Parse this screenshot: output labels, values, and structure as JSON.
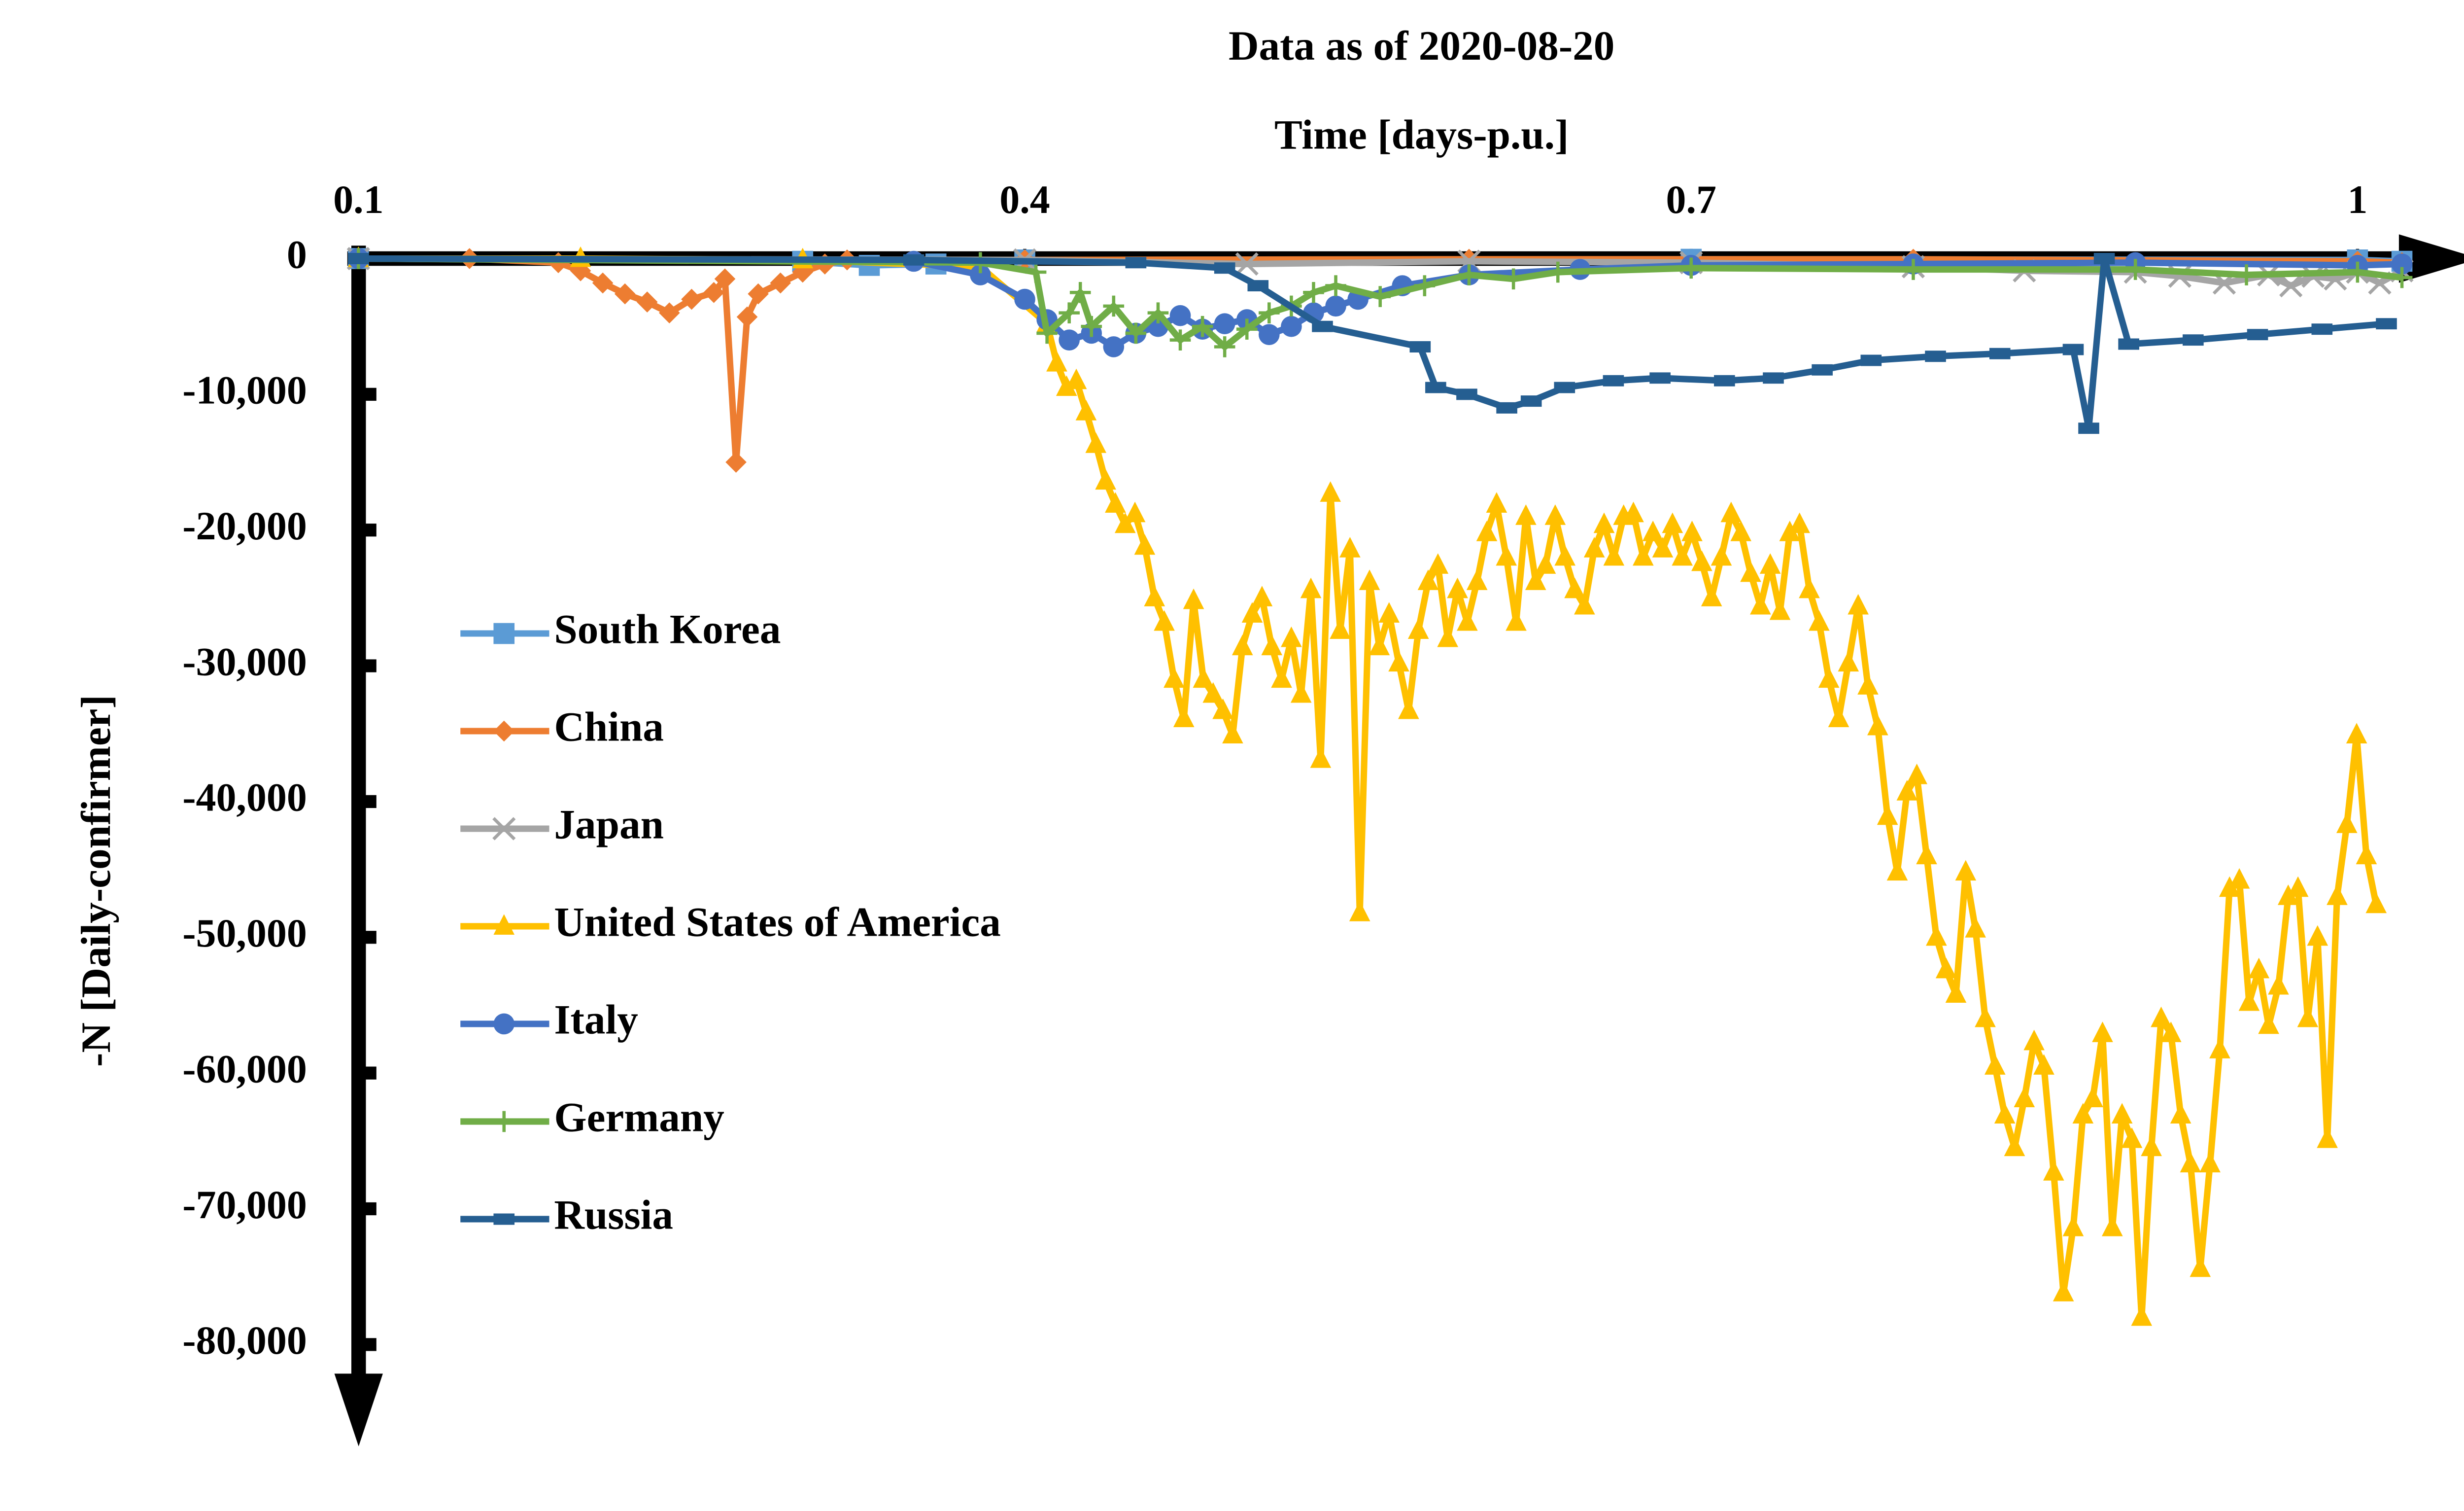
{
  "chart_data": {
    "type": "line",
    "title": "Data as of 2020-08-20",
    "x_label": "Time [days-p.u.]",
    "y_label": "-N [Daily-confirmer]",
    "xlim": [
      0.095,
      1.055
    ],
    "xticks": [
      0.1,
      0.4,
      0.7,
      1
    ],
    "ylim": [
      -87500,
      0
    ],
    "yticks": [
      0,
      {
        "value": -10000,
        "label": "-10,000"
      },
      {
        "value": -20000,
        "label": "-20,000"
      },
      {
        "value": -30000,
        "label": "-30,000"
      },
      {
        "value": -40000,
        "label": "-40,000"
      },
      {
        "value": -50000,
        "label": "-50,000"
      },
      {
        "value": -60000,
        "label": "-60,000"
      },
      {
        "value": -70000,
        "label": "-70,000"
      },
      {
        "value": -80000,
        "label": "-80,000"
      }
    ],
    "legend_position": "left",
    "series": [
      {
        "name": "South Korea",
        "color": "#5b9bd5",
        "marker": "square",
        "x": [
          0.1,
          0.3,
          0.33,
          0.36,
          0.4,
          0.7,
          1.0,
          1.02
        ],
        "values": [
          0,
          -200,
          -500,
          -400,
          -100,
          -50,
          -100,
          -200
        ]
      },
      {
        "name": "China",
        "color": "#ed7d31",
        "marker": "diamond",
        "x": [
          0.1,
          0.15,
          0.19,
          0.2,
          0.21,
          0.22,
          0.23,
          0.24,
          0.25,
          0.26,
          0.265,
          0.27,
          0.275,
          0.28,
          0.29,
          0.3,
          0.31,
          0.32,
          0.4,
          0.6,
          0.8,
          1.0,
          1.02
        ],
        "values": [
          0,
          0,
          -300,
          -900,
          -1800,
          -2600,
          -3200,
          -4000,
          -3000,
          -2500,
          -1500,
          -15000,
          -4300,
          -2600,
          -1800,
          -1000,
          -400,
          -100,
          -100,
          -50,
          -50,
          -200,
          -300
        ]
      },
      {
        "name": "Japan",
        "color": "#a5a5a5",
        "marker": "x",
        "x": [
          0.1,
          0.4,
          0.5,
          0.6,
          0.7,
          0.8,
          0.85,
          0.9,
          0.92,
          0.94,
          0.96,
          0.97,
          0.98,
          0.99,
          1.0,
          1.01,
          1.02
        ],
        "values": [
          0,
          -100,
          -400,
          -200,
          -300,
          -600,
          -900,
          -1000,
          -1300,
          -1800,
          -1200,
          -2000,
          -1300,
          -1500,
          -1000,
          -1800,
          -900
        ]
      },
      {
        "name": "United States of America",
        "color": "#ffc000",
        "marker": "triangle",
        "x": [
          0.1,
          0.2,
          0.3,
          0.38,
          0.41,
          0.4144,
          0.4188,
          0.4232,
          0.4276,
          0.432,
          0.4364,
          0.4408,
          0.4452,
          0.4496,
          0.454,
          0.4584,
          0.4628,
          0.4672,
          0.4716,
          0.476,
          0.4804,
          0.4848,
          0.4892,
          0.4936,
          0.498,
          0.5024,
          0.5068,
          0.5112,
          0.5156,
          0.52,
          0.5244,
          0.5288,
          0.5332,
          0.5376,
          0.542,
          0.5464,
          0.5508,
          0.5552,
          0.5596,
          0.564,
          0.5684,
          0.5728,
          0.5772,
          0.5816,
          0.586,
          0.5904,
          0.5948,
          0.5992,
          0.6036,
          0.608,
          0.6124,
          0.6168,
          0.6212,
          0.6256,
          0.63,
          0.6344,
          0.6388,
          0.6432,
          0.6476,
          0.652,
          0.6564,
          0.6608,
          0.6652,
          0.6696,
          0.674,
          0.6784,
          0.6828,
          0.6872,
          0.6916,
          0.696,
          0.7004,
          0.7048,
          0.7092,
          0.7136,
          0.718,
          0.7224,
          0.7268,
          0.7312,
          0.7356,
          0.74,
          0.7444,
          0.7488,
          0.7532,
          0.7576,
          0.762,
          0.7664,
          0.7708,
          0.7752,
          0.7796,
          0.784,
          0.7884,
          0.7928,
          0.7972,
          0.8016,
          0.806,
          0.8104,
          0.8148,
          0.8192,
          0.8236,
          0.828,
          0.8324,
          0.8368,
          0.8412,
          0.8456,
          0.85,
          0.8544,
          0.8588,
          0.8632,
          0.8676,
          0.872,
          0.8764,
          0.8808,
          0.8852,
          0.8896,
          0.894,
          0.8984,
          0.9028,
          0.9072,
          0.9116,
          0.916,
          0.9204,
          0.9248,
          0.9292,
          0.9336,
          0.938,
          0.9424,
          0.9468,
          0.9512,
          0.9556,
          0.96,
          0.9644,
          0.9688,
          0.9732,
          0.9776,
          0.982,
          0.9864,
          0.9908,
          0.9952,
          0.9996,
          1.004,
          1.0084
        ],
        "values": [
          0,
          0,
          -100,
          -600,
          -4800,
          -7700,
          -9500,
          -9000,
          -11300,
          -13700,
          -16400,
          -18100,
          -19600,
          -18800,
          -21200,
          -25000,
          -26800,
          -31000,
          -33900,
          -25200,
          -31000,
          -32100,
          -33300,
          -35100,
          -28600,
          -26200,
          -25000,
          -28600,
          -31000,
          -28000,
          -32100,
          -24400,
          -36900,
          -17300,
          -27400,
          -21400,
          -48200,
          -23800,
          -28600,
          -26200,
          -29800,
          -33300,
          -27400,
          -23800,
          -22600,
          -28000,
          -24400,
          -26800,
          -23800,
          -20200,
          -18100,
          -22000,
          -26800,
          -19000,
          -23800,
          -22600,
          -19000,
          -22000,
          -24400,
          -25600,
          -21400,
          -19600,
          -22000,
          -19000,
          -18800,
          -22000,
          -20200,
          -21400,
          -19600,
          -22000,
          -20200,
          -22400,
          -25000,
          -22000,
          -18800,
          -20200,
          -23200,
          -25600,
          -22600,
          -26000,
          -20200,
          -19600,
          -24400,
          -26800,
          -31000,
          -33900,
          -29800,
          -25600,
          -31500,
          -34500,
          -41100,
          -45200,
          -39300,
          -38100,
          -44000,
          -50000,
          -52400,
          -54200,
          -45200,
          -49400,
          -56000,
          -59500,
          -63100,
          -65500,
          -61900,
          -57700,
          -59500,
          -67300,
          -76200,
          -71400,
          -63100,
          -61900,
          -57100,
          -71400,
          -63100,
          -64900,
          -78000,
          -65500,
          -56000,
          -57100,
          -63100,
          -66700,
          -74400,
          -66700,
          -58300,
          -46400,
          -45800,
          -54800,
          -52400,
          -56500,
          -53600,
          -47000,
          -46400,
          -56000,
          -50000,
          -64900,
          -47000,
          -41700,
          -35100,
          -44000,
          -47600
        ]
      },
      {
        "name": "Italy",
        "color": "#4472c4",
        "marker": "circle",
        "x": [
          0.1,
          0.35,
          0.38,
          0.4,
          0.41,
          0.42,
          0.43,
          0.44,
          0.45,
          0.46,
          0.47,
          0.48,
          0.49,
          0.5,
          0.51,
          0.52,
          0.53,
          0.54,
          0.55,
          0.57,
          0.6,
          0.65,
          0.7,
          0.8,
          0.9,
          1.0,
          1.02
        ],
        "values": [
          0,
          -200,
          -1200,
          -3000,
          -4500,
          -6000,
          -5500,
          -6500,
          -5500,
          -5000,
          -4200,
          -5200,
          -4800,
          -4500,
          -5600,
          -5000,
          -4000,
          -3500,
          -3000,
          -2000,
          -1200,
          -800,
          -500,
          -400,
          -300,
          -500,
          -400
        ]
      },
      {
        "name": "Germany",
        "color": "#70ad47",
        "marker": "plus",
        "x": [
          0.1,
          0.38,
          0.405,
          0.41,
          0.42,
          0.425,
          0.43,
          0.44,
          0.45,
          0.46,
          0.47,
          0.48,
          0.49,
          0.5,
          0.51,
          0.52,
          0.53,
          0.54,
          0.56,
          0.58,
          0.6,
          0.62,
          0.64,
          0.7,
          0.8,
          0.9,
          0.95,
          1.0,
          1.02
        ],
        "values": [
          0,
          -300,
          -1000,
          -5500,
          -4000,
          -2500,
          -5000,
          -3500,
          -5500,
          -4000,
          -6000,
          -5000,
          -6500,
          -5200,
          -4000,
          -3500,
          -2500,
          -2000,
          -2800,
          -2000,
          -1200,
          -1500,
          -1000,
          -700,
          -800,
          -800,
          -1200,
          -1000,
          -1400
        ]
      },
      {
        "name": "Russia",
        "color": "#255e91",
        "marker": "dash",
        "x": [
          0.1,
          0.35,
          0.45,
          0.49,
          0.505,
          0.534,
          0.578,
          0.585,
          0.599,
          0.617,
          0.628,
          0.643,
          0.665,
          0.686,
          0.715,
          0.737,
          0.759,
          0.781,
          0.81,
          0.839,
          0.872,
          0.879,
          0.886,
          0.897,
          0.926,
          0.955,
          0.984,
          1.013
        ],
        "values": [
          0,
          -100,
          -300,
          -700,
          -2000,
          -5000,
          -6500,
          -9500,
          -10000,
          -11000,
          -10500,
          -9500,
          -9000,
          -8800,
          -9000,
          -8800,
          -8200,
          -7500,
          -7200,
          -7000,
          -6700,
          -12500,
          0,
          -6300,
          -6000,
          -5600,
          -5200,
          -4800
        ]
      }
    ]
  }
}
